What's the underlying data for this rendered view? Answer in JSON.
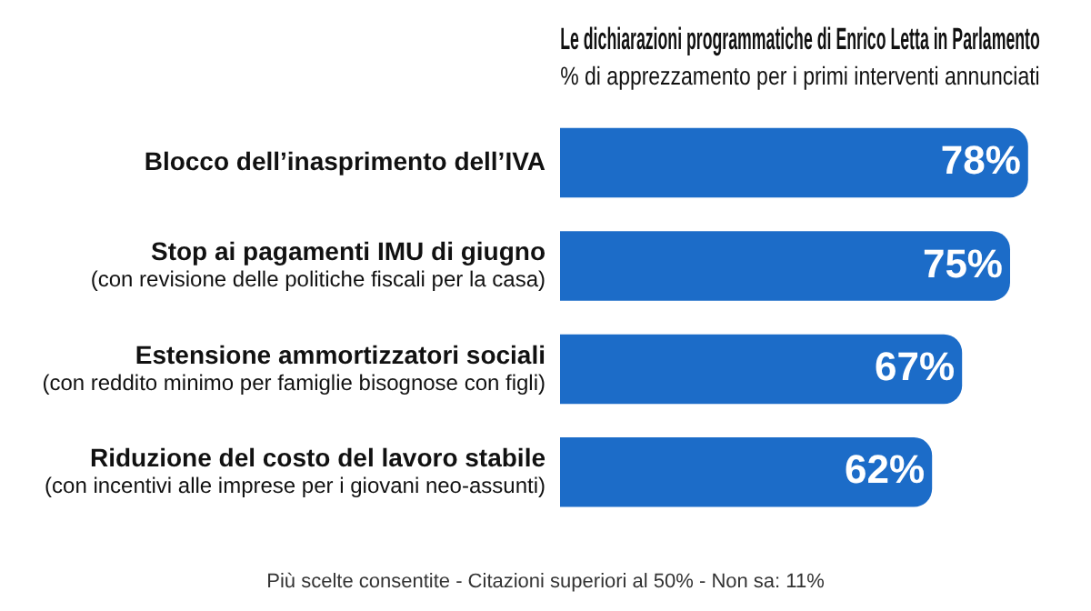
{
  "chart_data": {
    "type": "bar",
    "orientation": "horizontal",
    "title": "Le dichiarazioni programmatiche di Enrico Letta in Parlamento",
    "subtitle": "% di apprezzamento per i primi interventi annunciati",
    "categories": [
      "Blocco dell’inasprimento dell’IVA",
      "Stop ai pagamenti IMU di giugno\n(con revisione delle politiche fiscali per la casa)",
      "Estensione ammortizzatori sociali\n(con reddito minimo per famiglie bisognose con figli)",
      "Riduzione del costo del lavoro stabile\n(con incentivi alle imprese per i giovani neo-assunti)"
    ],
    "values": [
      78,
      75,
      67,
      62
    ],
    "color": "#1c6cc8",
    "value_labels": [
      "78%",
      "75%",
      "67%",
      "62%"
    ],
    "annotations": [
      "Più scelte consentite - Citazioni superiori al 50% - Non sa: 11%"
    ]
  }
}
